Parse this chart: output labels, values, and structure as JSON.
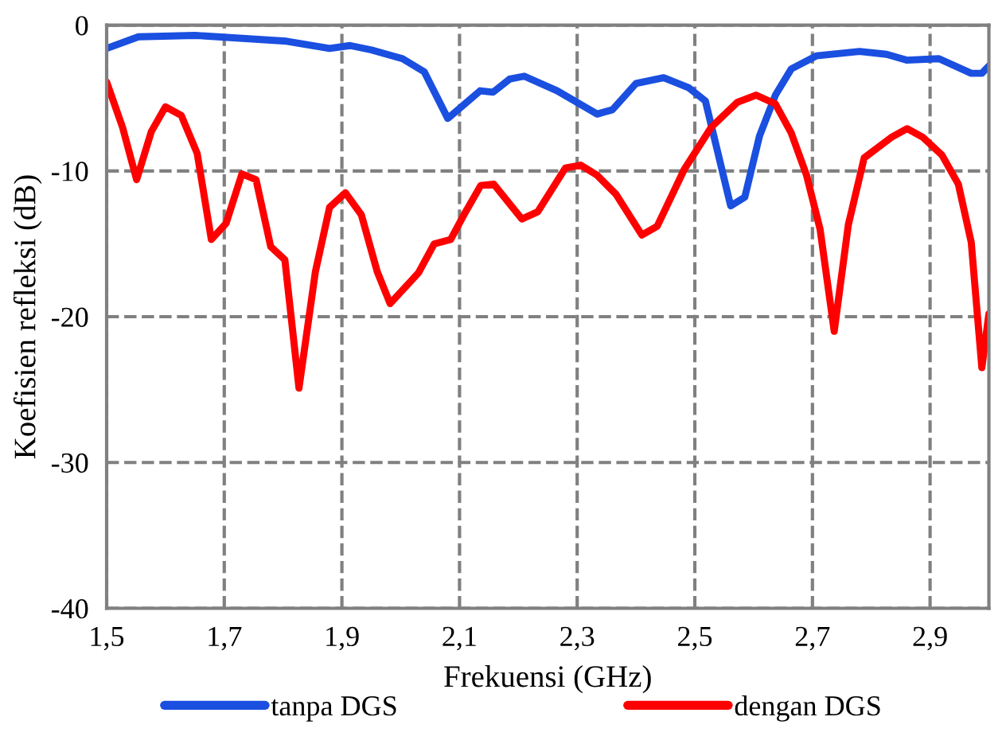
{
  "chart_data": {
    "type": "line",
    "xlabel": "Frekuensi (GHz)",
    "ylabel": "Koefisien refleksi (dB)",
    "xlim": [
      1.5,
      3.0
    ],
    "ylim": [
      -40,
      0
    ],
    "xticks": [
      {
        "value": 1.5,
        "label": "1,5"
      },
      {
        "value": 1.7,
        "label": "1,7"
      },
      {
        "value": 1.9,
        "label": "1,9"
      },
      {
        "value": 2.1,
        "label": "2,1"
      },
      {
        "value": 2.3,
        "label": "2,3"
      },
      {
        "value": 2.5,
        "label": "2,5"
      },
      {
        "value": 2.7,
        "label": "2,7"
      },
      {
        "value": 2.9,
        "label": "2,9"
      }
    ],
    "yticks": [
      0,
      -10,
      -20,
      -30,
      -40
    ],
    "grid": true,
    "legend": "bottom",
    "line_style": "solid",
    "marker": "none",
    "series": [
      {
        "name": "tanpa DGS",
        "color": "#1a4fe0",
        "x": [
          1.5,
          1.554,
          1.65,
          1.806,
          1.879,
          1.914,
          1.95,
          2.003,
          2.04,
          2.08,
          2.135,
          2.157,
          2.185,
          2.21,
          2.266,
          2.334,
          2.36,
          2.4,
          2.447,
          2.49,
          2.518,
          2.561,
          2.585,
          2.61,
          2.637,
          2.664,
          2.707,
          2.78,
          2.826,
          2.86,
          2.915,
          2.97,
          2.988,
          3.0
        ],
        "values": [
          -1.6,
          -0.8,
          -0.7,
          -1.1,
          -1.6,
          -1.4,
          -1.7,
          -2.3,
          -3.2,
          -6.4,
          -4.5,
          -4.6,
          -3.7,
          -3.5,
          -4.5,
          -6.1,
          -5.8,
          -4.0,
          -3.6,
          -4.3,
          -5.2,
          -12.4,
          -11.8,
          -7.6,
          -4.8,
          -3.0,
          -2.1,
          -1.8,
          -2.0,
          -2.4,
          -2.3,
          -3.3,
          -3.3,
          -2.8
        ]
      },
      {
        "name": "dengan DGS",
        "color": "#ff0000",
        "x": [
          1.5,
          1.527,
          1.551,
          1.576,
          1.6,
          1.627,
          1.654,
          1.678,
          1.703,
          1.73,
          1.754,
          1.779,
          1.803,
          1.827,
          1.855,
          1.879,
          1.906,
          1.933,
          1.96,
          1.982,
          2.03,
          2.057,
          2.085,
          2.109,
          2.136,
          2.158,
          2.206,
          2.233,
          2.28,
          2.306,
          2.334,
          2.366,
          2.41,
          2.436,
          2.482,
          2.528,
          2.572,
          2.604,
          2.637,
          2.664,
          2.69,
          2.713,
          2.737,
          2.761,
          2.788,
          2.834,
          2.861,
          2.888,
          2.92,
          2.948,
          2.97,
          2.988,
          3.0
        ],
        "values": [
          -3.9,
          -7.0,
          -10.6,
          -7.3,
          -5.6,
          -6.2,
          -8.8,
          -14.7,
          -13.6,
          -10.2,
          -10.6,
          -15.2,
          -16.1,
          -24.9,
          -16.9,
          -12.5,
          -11.5,
          -13.0,
          -16.9,
          -19.1,
          -17.0,
          -15.0,
          -14.7,
          -12.9,
          -11.0,
          -10.9,
          -13.3,
          -12.8,
          -9.8,
          -9.6,
          -10.3,
          -11.6,
          -14.4,
          -13.8,
          -9.9,
          -7.0,
          -5.3,
          -4.8,
          -5.4,
          -7.4,
          -10.3,
          -14.0,
          -21.0,
          -13.7,
          -9.1,
          -7.7,
          -7.1,
          -7.7,
          -8.9,
          -10.9,
          -14.9,
          -23.5,
          -19.8
        ]
      }
    ]
  }
}
